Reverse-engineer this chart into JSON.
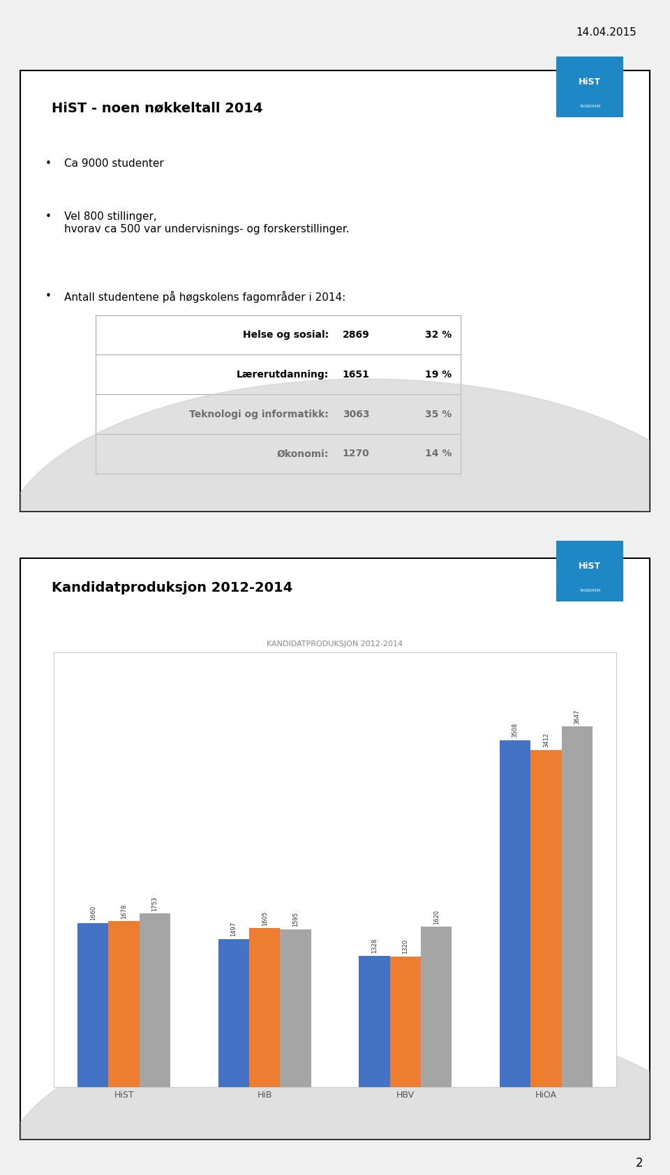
{
  "date_text": "14.04.2015",
  "page_number": "2",
  "slide1": {
    "title": "HiST - noen nøkkeltall 2014",
    "bullets": [
      "Ca 9000 studenter",
      "Vel 800 stillinger,\nhvorav ca 500 var undervisnings- og forskerstillinger.",
      "Antall studentene på høgskolens fagområder i 2014:"
    ],
    "table_rows": [
      [
        "Helse og sosial:",
        "2869",
        "32 %"
      ],
      [
        "Lærerutdanning:",
        "1651",
        "19 %"
      ],
      [
        "Teknologi og informatikk:",
        "3063",
        "35 %"
      ],
      [
        "Økonomi:",
        "1270",
        "14 %"
      ]
    ]
  },
  "slide2": {
    "title": "Kandidatproduksjon 2012-2014",
    "chart_title": "KANDIDATPRODUKSJON 2012-2014",
    "categories": [
      "HiST",
      "HiB",
      "HBV",
      "HiOA"
    ],
    "series": {
      "2012": [
        1660,
        1497,
        1328,
        3508
      ],
      "2013": [
        1678,
        1605,
        1320,
        3412
      ],
      "2014": [
        1753,
        1595,
        1620,
        3647
      ]
    },
    "colors": {
      "2012": "#4472C4",
      "2013": "#ED7D31",
      "2014": "#A5A5A5"
    }
  },
  "background_color": "#FFFFFF",
  "page_bg_color": "#F0F0F0",
  "slide_border_color": "#000000",
  "text_color": "#000000",
  "title_fontsize": 14,
  "body_fontsize": 11,
  "table_fontsize": 10,
  "logo_color": "#1E88C7",
  "logo_text": "HiST",
  "logo_subtext": "TRONDHEIM",
  "table_border_color": "#AAAAAA",
  "chart_title_color": "#888888",
  "chart_label_color": "#333333"
}
